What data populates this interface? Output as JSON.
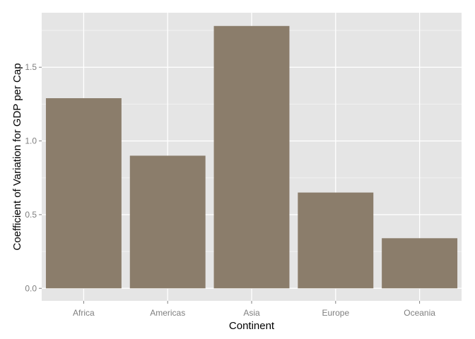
{
  "chart_data": {
    "type": "bar",
    "title": "",
    "xlabel": "Continent",
    "ylabel": "Coefficient of Variation for GDP per Cap",
    "categories": [
      "Africa",
      "Americas",
      "Asia",
      "Europe",
      "Oceania"
    ],
    "values": [
      1.29,
      0.9,
      1.78,
      0.65,
      0.34
    ],
    "ylim": [
      -0.085,
      1.87
    ],
    "yticks": [
      0.0,
      0.5,
      1.0,
      1.5
    ],
    "ytick_labels": [
      "0.0",
      "0.5",
      "1.0",
      "1.5"
    ],
    "grid": true,
    "legend": "none",
    "colors": {
      "bar": "#8b7d6b",
      "panel": "#e5e5e5",
      "grid_major": "#ffffff",
      "grid_minor": "#f2f2f2",
      "tick_label": "#7f7f7f",
      "tick_mark": "#7f7f7f",
      "axis_title": "#000000"
    }
  }
}
